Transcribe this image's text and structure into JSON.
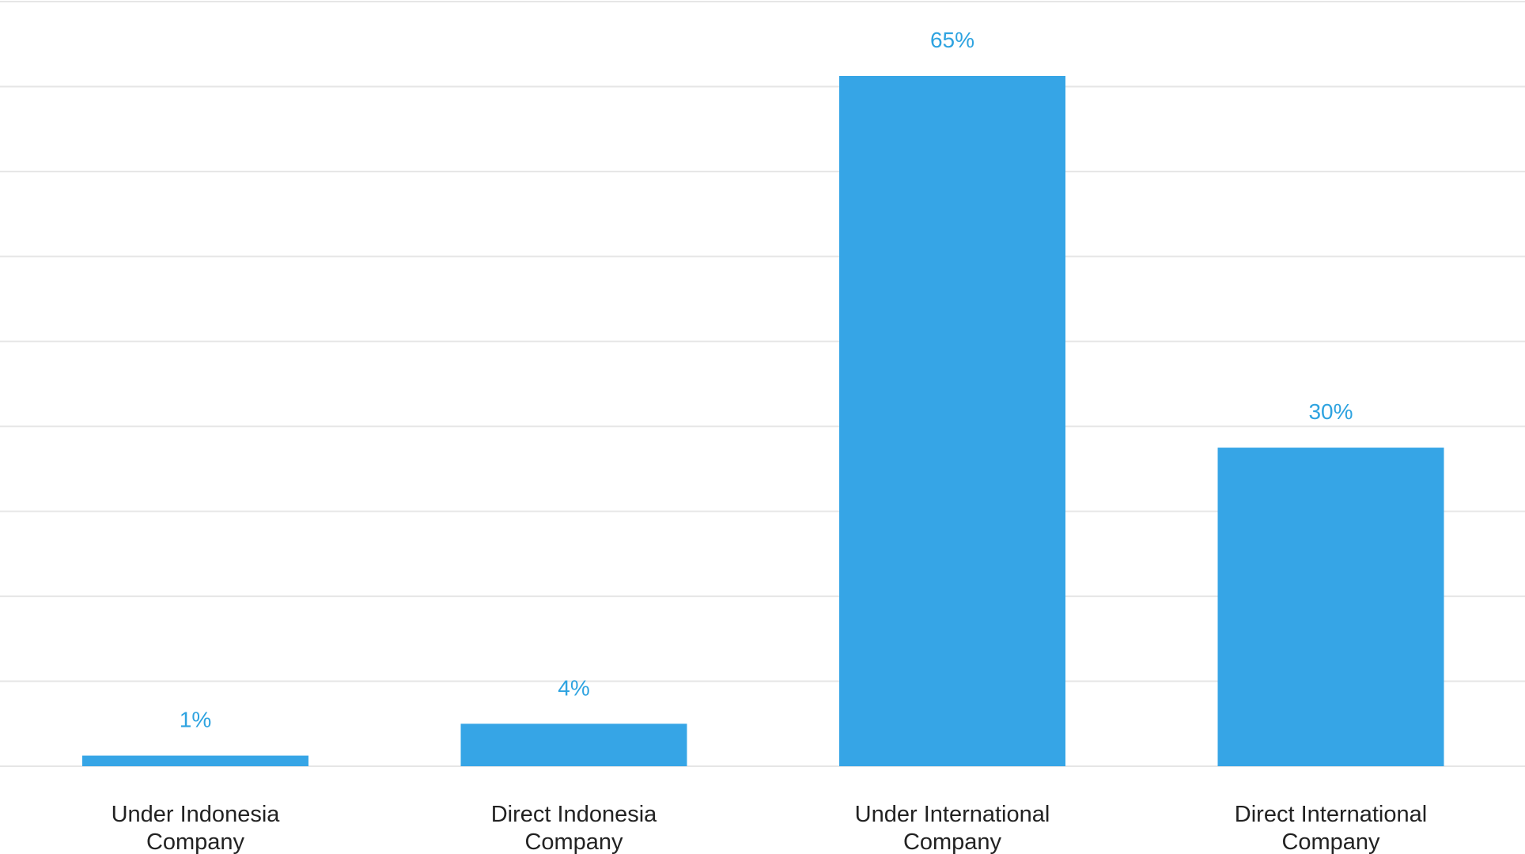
{
  "chart_data": {
    "type": "bar",
    "categories": [
      [
        "Under Indonesia",
        "Company"
      ],
      [
        "Direct Indonesia",
        "Company"
      ],
      [
        "Under International",
        "Company"
      ],
      [
        "Direct International",
        "Company"
      ]
    ],
    "values": [
      1,
      4,
      65,
      30
    ],
    "value_labels": [
      "1%",
      "4%",
      "65%",
      "30%"
    ],
    "ylim": [
      0,
      72
    ],
    "grid": true,
    "bar_color": "#36a5e6",
    "label_color": "#2ea3e0",
    "grid_color": "#e6e6e6"
  }
}
